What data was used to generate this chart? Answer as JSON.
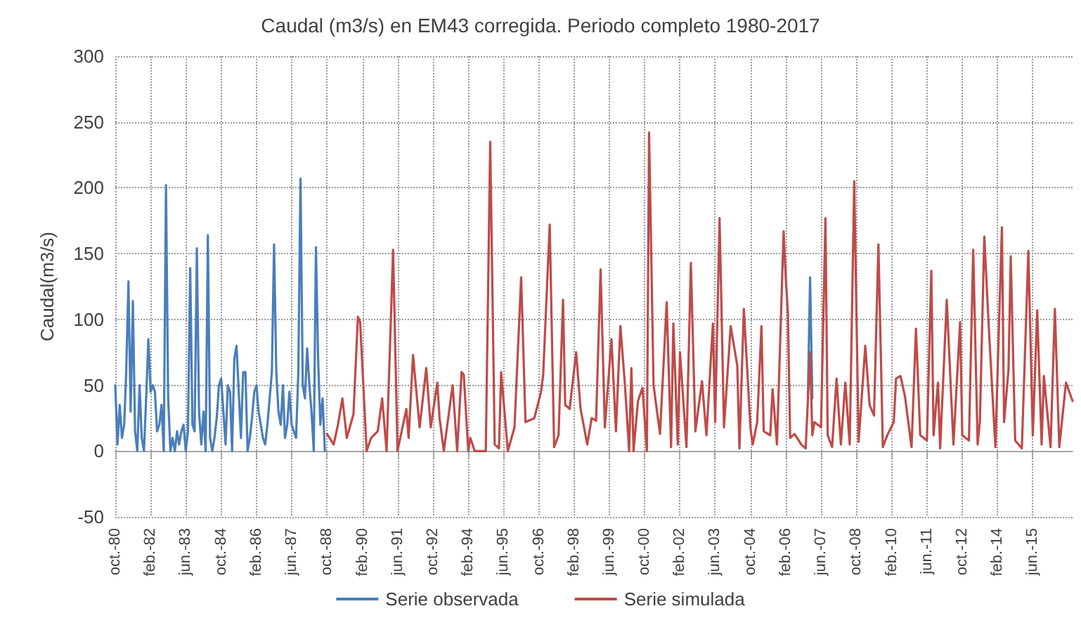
{
  "chart_data": {
    "type": "line",
    "title": "Caudal (m3/s) en EM43 corregida. Periodo completo 1980-2017",
    "ylabel": "Caudal(m3/s)",
    "x": [
      "1988-10",
      "1989-01",
      "1989-03",
      "1989-05",
      "1989-07",
      "1989-10",
      "1989-12",
      "1990-01",
      "1990-04",
      "1990-06",
      "1990-09",
      "1990-11",
      "1991-01",
      "1991-04",
      "1991-06",
      "1991-10",
      "1991-11",
      "1992-01",
      "1992-04",
      "1992-07",
      "1992-09",
      "1992-12",
      "1993-01",
      "1993-03",
      "1993-06",
      "1993-07",
      "1993-09",
      "1993-11",
      "1993-12",
      "1994-02",
      "1994-03",
      "1994-05",
      "1994-10",
      "1994-12",
      "1995-02",
      "1995-04",
      "1995-05",
      "1995-08",
      "1995-11",
      "1996-02",
      "1996-04",
      "1996-08",
      "1996-11",
      "1996-12",
      "1997-03",
      "1997-05",
      "1997-07",
      "1997-09",
      "1997-10",
      "1997-12",
      "1998-03",
      "1998-05",
      "1998-08",
      "1998-10",
      "1998-12",
      "1999-02",
      "1999-04",
      "1999-07",
      "1999-09",
      "1999-11",
      "2000-01",
      "2000-03",
      "2000-04",
      "2000-05",
      "2000-07",
      "2000-09",
      "2000-11",
      "2000-12",
      "2001-02",
      "2001-05",
      "2001-08",
      "2001-10",
      "2001-11",
      "2002-01",
      "2002-02",
      "2002-05",
      "2002-07",
      "2002-09",
      "2002-12",
      "2003-02",
      "2003-05",
      "2003-06",
      "2003-08",
      "2003-10",
      "2004-01",
      "2004-04",
      "2004-05",
      "2004-07",
      "2004-10",
      "2004-11",
      "2005-01",
      "2005-03",
      "2005-04",
      "2005-07",
      "2005-08",
      "2005-10",
      "2006-01",
      "2006-02",
      "2006-03",
      "2006-04",
      "2006-06",
      "2006-09",
      "2006-11",
      "2007-01",
      "2007-02",
      "2007-03",
      "2007-06",
      "2007-08",
      "2007-09",
      "2007-11",
      "2008-01",
      "2008-03",
      "2008-05",
      "2008-07",
      "2008-09",
      "2008-11",
      "2009-02",
      "2009-04",
      "2009-06",
      "2009-08",
      "2009-10",
      "2009-12",
      "2010-03",
      "2010-04",
      "2010-06",
      "2010-08",
      "2010-11",
      "2011-01",
      "2011-03",
      "2011-06",
      "2011-08",
      "2011-09",
      "2011-11",
      "2011-12",
      "2012-03",
      "2012-06",
      "2012-09",
      "2012-10",
      "2013-01",
      "2013-03",
      "2013-05",
      "2013-06",
      "2013-08",
      "2013-10",
      "2014-01",
      "2014-04",
      "2014-05",
      "2014-07",
      "2014-08",
      "2014-10",
      "2015-01",
      "2015-04",
      "2015-06",
      "2015-08",
      "2015-10",
      "2015-11",
      "2016-02",
      "2016-04",
      "2016-06",
      "2016-09",
      "2016-12"
    ],
    "series": [
      {
        "name": "Serie observada",
        "color": "#4a7ebb",
        "x": [
          "1980-10",
          "1980-11",
          "1980-12",
          "1981-01",
          "1981-02",
          "1981-03",
          "1981-04",
          "1981-05",
          "1981-06",
          "1981-07",
          "1981-08",
          "1981-09",
          "1981-10",
          "1981-11",
          "1981-12",
          "1982-01",
          "1982-02",
          "1982-03",
          "1982-04",
          "1982-05",
          "1982-06",
          "1982-07",
          "1982-08",
          "1982-09",
          "1982-10",
          "1982-11",
          "1982-12",
          "1983-01",
          "1983-02",
          "1983-03",
          "1983-04",
          "1983-05",
          "1983-06",
          "1983-07",
          "1983-08",
          "1983-09",
          "1983-10",
          "1983-11",
          "1983-12",
          "1984-01",
          "1984-02",
          "1984-03",
          "1984-04",
          "1984-05",
          "1984-06",
          "1984-07",
          "1984-08",
          "1984-09",
          "1984-10",
          "1984-11",
          "1984-12",
          "1985-01",
          "1985-02",
          "1985-03",
          "1985-04",
          "1985-05",
          "1985-06",
          "1985-07",
          "1985-08",
          "1985-09",
          "1985-10",
          "1985-11",
          "1985-12",
          "1986-01",
          "1986-02",
          "1986-03",
          "1986-04",
          "1986-05",
          "1986-06",
          "1986-07",
          "1986-08",
          "1986-09",
          "1986-10",
          "1986-11",
          "1986-12",
          "1987-01",
          "1987-02",
          "1987-03",
          "1987-04",
          "1987-05",
          "1987-06",
          "1987-07",
          "1987-08",
          "1987-09",
          "1987-10",
          "1987-11",
          "1987-12",
          "1988-01",
          "1988-02",
          "1988-03",
          "1988-04",
          "1988-05",
          "1988-06",
          "1988-07",
          "1988-08",
          "1988-09",
          "1988-10",
          "2006-12",
          "2007-01",
          "2007-02"
        ],
        "values": [
          50,
          5,
          35,
          10,
          20,
          60,
          129,
          30,
          114,
          15,
          0,
          50,
          10,
          0,
          40,
          85,
          45,
          50,
          45,
          15,
          20,
          35,
          0,
          202,
          40,
          0,
          10,
          0,
          15,
          5,
          15,
          20,
          0,
          15,
          139,
          20,
          15,
          154,
          30,
          5,
          30,
          0,
          164,
          10,
          0,
          10,
          25,
          50,
          55,
          30,
          5,
          50,
          45,
          0,
          70,
          80,
          45,
          10,
          60,
          60,
          0,
          10,
          25,
          45,
          50,
          30,
          20,
          10,
          5,
          20,
          40,
          60,
          157,
          60,
          30,
          20,
          50,
          10,
          20,
          45,
          20,
          15,
          10,
          60,
          207,
          50,
          40,
          78,
          50,
          30,
          0,
          155,
          68,
          20,
          40,
          0,
          null,
          40,
          132,
          40
        ]
      },
      {
        "name": "Serie simulada",
        "color": "#be4b48",
        "values": [
          13,
          5,
          20,
          40,
          10,
          28,
          102,
          98,
          0,
          10,
          15,
          40,
          0,
          153,
          0,
          32,
          10,
          73,
          18,
          63,
          18,
          52,
          25,
          0,
          38,
          50,
          0,
          60,
          58,
          0,
          10,
          0,
          0,
          235,
          5,
          2,
          60,
          0,
          18,
          132,
          22,
          25,
          45,
          58,
          172,
          3,
          12,
          115,
          35,
          32,
          75,
          32,
          5,
          25,
          23,
          138,
          18,
          85,
          15,
          95,
          52,
          0,
          63,
          0,
          38,
          48,
          0,
          242,
          50,
          13,
          113,
          3,
          97,
          5,
          75,
          3,
          143,
          15,
          53,
          12,
          97,
          22,
          177,
          18,
          95,
          65,
          2,
          108,
          17,
          5,
          22,
          95,
          15,
          12,
          47,
          5,
          167,
          130,
          105,
          10,
          13,
          5,
          2,
          75,
          12,
          22,
          18,
          177,
          12,
          3,
          55,
          5,
          52,
          5,
          205,
          7,
          80,
          35,
          27,
          157,
          3,
          12,
          22,
          55,
          57,
          42,
          3,
          93,
          12,
          8,
          137,
          12,
          52,
          2,
          115,
          5,
          98,
          12,
          8,
          153,
          5,
          22,
          163,
          95,
          3,
          170,
          22,
          62,
          148,
          8,
          2,
          152,
          12,
          107,
          5,
          57,
          3,
          108,
          3,
          52,
          38
        ]
      }
    ],
    "xlim": [
      "1980-10",
      "2016-12"
    ],
    "xticks": [
      {
        "value": "1980-10",
        "label": "oct.-80"
      },
      {
        "value": "1982-02",
        "label": "feb.-82"
      },
      {
        "value": "1983-06",
        "label": "jun.-83"
      },
      {
        "value": "1984-10",
        "label": "oct.-84"
      },
      {
        "value": "1986-02",
        "label": "feb.-86"
      },
      {
        "value": "1987-06",
        "label": "jun.-87"
      },
      {
        "value": "1988-10",
        "label": "oct.-88"
      },
      {
        "value": "1990-02",
        "label": "feb.-90"
      },
      {
        "value": "1991-06",
        "label": "jun.-91"
      },
      {
        "value": "1992-10",
        "label": "oct.-92"
      },
      {
        "value": "1994-02",
        "label": "feb.-94"
      },
      {
        "value": "1995-06",
        "label": "jun.-95"
      },
      {
        "value": "1996-10",
        "label": "oct.-96"
      },
      {
        "value": "1998-02",
        "label": "feb.-98"
      },
      {
        "value": "1999-06",
        "label": "jun.-99"
      },
      {
        "value": "2000-10",
        "label": "oct.-00"
      },
      {
        "value": "2002-02",
        "label": "feb.-02"
      },
      {
        "value": "2003-06",
        "label": "jun.-03"
      },
      {
        "value": "2004-10",
        "label": "oct.-04"
      },
      {
        "value": "2006-02",
        "label": "feb.-06"
      },
      {
        "value": "2007-06",
        "label": "jun.-07"
      },
      {
        "value": "2008-10",
        "label": "oct.-08"
      },
      {
        "value": "2010-02",
        "label": "feb.-10"
      },
      {
        "value": "2011-06",
        "label": "jun.-11"
      },
      {
        "value": "2012-10",
        "label": "oct.-12"
      },
      {
        "value": "2014-02",
        "label": "feb.-14"
      },
      {
        "value": "2015-06",
        "label": "jun.-15"
      }
    ],
    "ylim": [
      -50,
      300
    ],
    "yticks": [
      -50,
      0,
      50,
      100,
      150,
      200,
      250,
      300
    ],
    "grid": true,
    "legend": "bottom",
    "marker": "none",
    "line_style": "solid"
  }
}
